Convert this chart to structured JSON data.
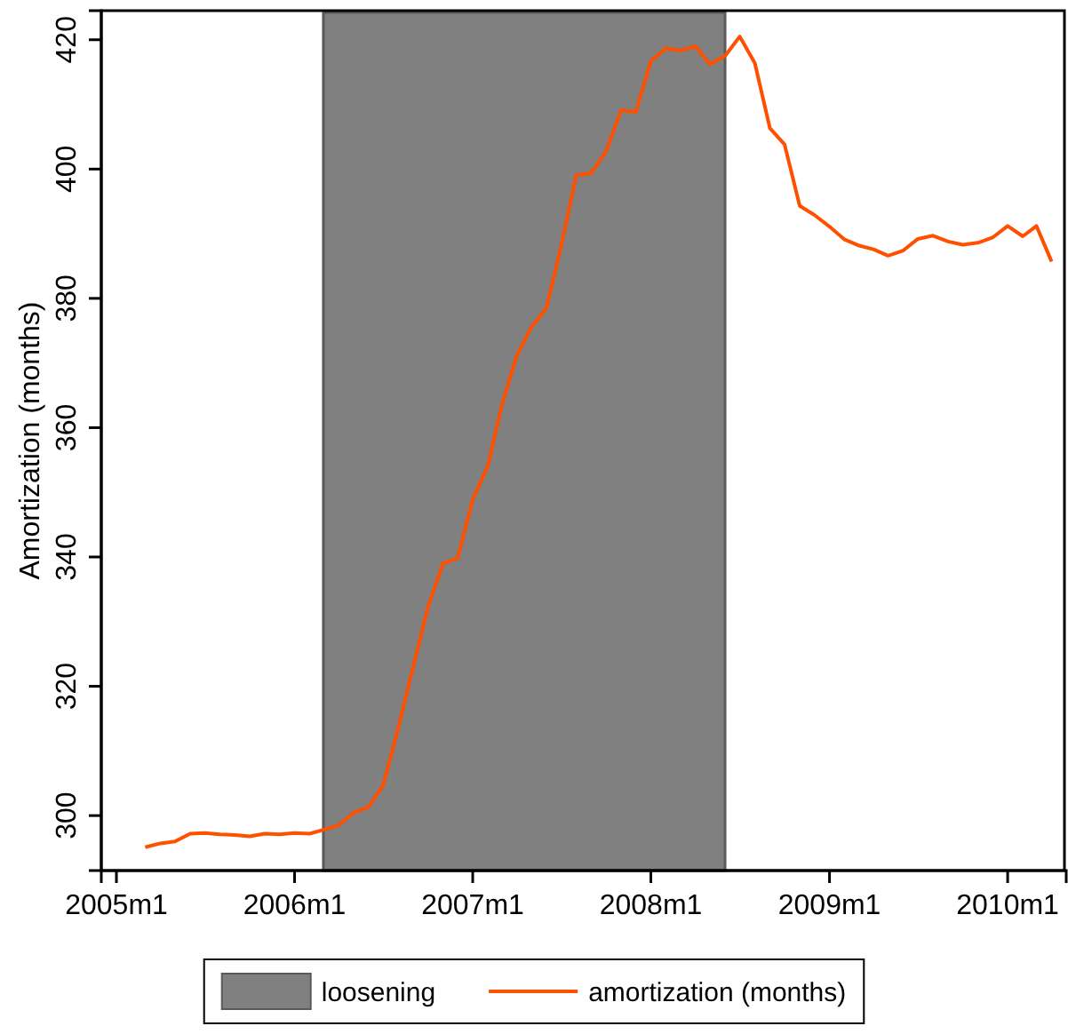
{
  "chart_data": {
    "type": "line",
    "ylabel": "Amortization (months)",
    "x": [
      "2005-03",
      "2005-04",
      "2005-05",
      "2005-06",
      "2005-07",
      "2005-08",
      "2005-09",
      "2005-10",
      "2005-11",
      "2005-12",
      "2006-01",
      "2006-02",
      "2006-03",
      "2006-04",
      "2006-05",
      "2006-06",
      "2006-07",
      "2006-08",
      "2006-09",
      "2006-10",
      "2006-11",
      "2006-12",
      "2007-01",
      "2007-02",
      "2007-03",
      "2007-04",
      "2007-05",
      "2007-06",
      "2007-07",
      "2007-08",
      "2007-09",
      "2007-10",
      "2007-11",
      "2007-12",
      "2008-01",
      "2008-02",
      "2008-03",
      "2008-04",
      "2008-05",
      "2008-06",
      "2008-07",
      "2008-08",
      "2008-09",
      "2008-10",
      "2008-11",
      "2008-12",
      "2009-01",
      "2009-02",
      "2009-03",
      "2009-04",
      "2009-05",
      "2009-06",
      "2009-07",
      "2009-08",
      "2009-09",
      "2009-10",
      "2009-11",
      "2009-12",
      "2010-01",
      "2010-02",
      "2010-03",
      "2010-04"
    ],
    "series": [
      {
        "name": "amortization (months)",
        "color": "#ff5000",
        "values": [
          295.1,
          295.7,
          296.0,
          297.2,
          297.3,
          297.1,
          297.0,
          296.8,
          297.2,
          297.1,
          297.3,
          297.2,
          297.8,
          298.5,
          300.4,
          301.3,
          304.6,
          313.4,
          323.0,
          332.2,
          339.0,
          339.8,
          348.9,
          354.1,
          363.3,
          371.1,
          375.5,
          378.5,
          388.0,
          399.0,
          399.4,
          402.7,
          409.1,
          408.8,
          416.7,
          418.7,
          418.3,
          419.0,
          416.2,
          417.5,
          420.5,
          416.4,
          406.3,
          403.8,
          394.3,
          392.9,
          391.1,
          389.1,
          388.2,
          387.6,
          386.6,
          387.4,
          389.2,
          389.7,
          388.8,
          388.3,
          388.6,
          389.4,
          391.2,
          389.6,
          391.2,
          385.7
        ]
      }
    ],
    "bands": [
      {
        "axis": "x",
        "from": "2006-03",
        "to": "2008-06",
        "label": "loosening",
        "color": "#808080"
      }
    ],
    "xlim": [
      "2004-12",
      "2010-05"
    ],
    "xticks": [
      {
        "value": "2005-01",
        "label": "2005m1"
      },
      {
        "value": "2006-01",
        "label": "2006m1"
      },
      {
        "value": "2007-01",
        "label": "2007m1"
      },
      {
        "value": "2008-01",
        "label": "2008m1"
      },
      {
        "value": "2009-01",
        "label": "2009m1"
      },
      {
        "value": "2010-01",
        "label": "2010m1"
      }
    ],
    "ylim": [
      291.5,
      424.5
    ],
    "yticks": [
      300,
      320,
      340,
      360,
      380,
      400,
      420
    ],
    "legend": "bottom",
    "line_style": "solid",
    "marker": "none"
  }
}
